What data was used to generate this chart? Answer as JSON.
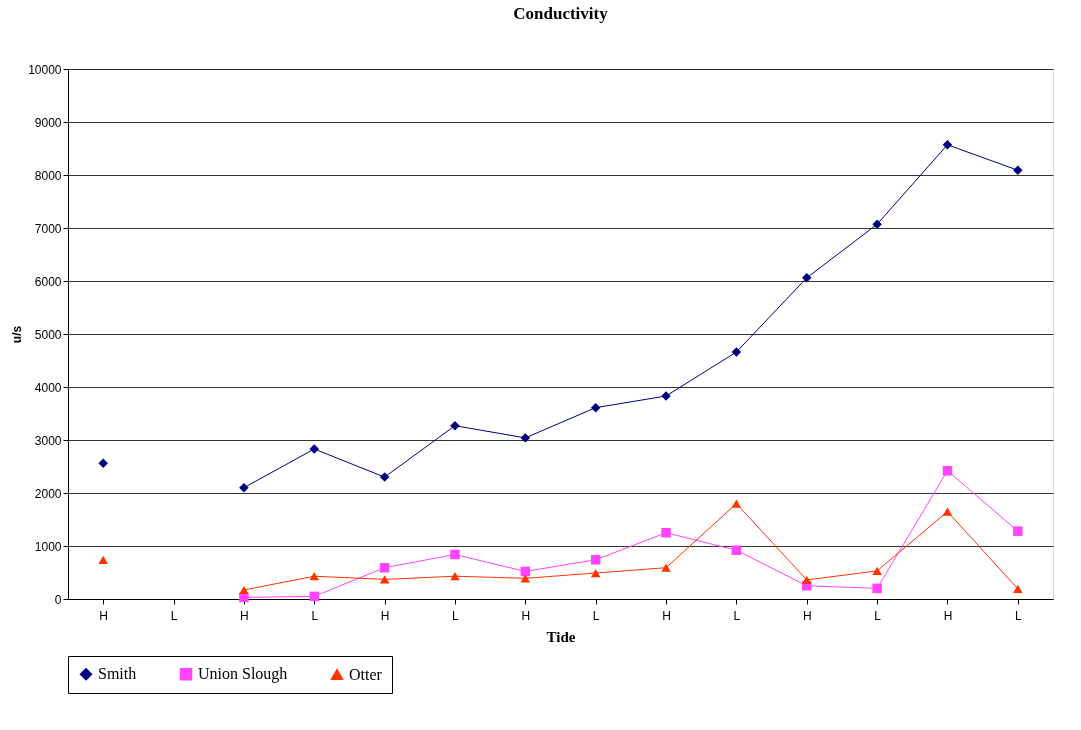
{
  "chart_data": {
    "type": "line",
    "title": "Conductivity",
    "xlabel": "Tide",
    "ylabel": "u/s",
    "categories": [
      "H",
      "L",
      "H",
      "L",
      "H",
      "L",
      "H",
      "L",
      "H",
      "L",
      "H",
      "L",
      "H",
      "L"
    ],
    "series": [
      {
        "name": "Smith",
        "color": "#000080",
        "marker": "diamond",
        "values": [
          2560,
          null,
          2100,
          2830,
          2300,
          3270,
          3040,
          3610,
          3830,
          4660,
          6060,
          7070,
          8570,
          8090
        ]
      },
      {
        "name": "Union Slough",
        "color": "#ff44ff",
        "marker": "square",
        "values": [
          null,
          null,
          30,
          50,
          590,
          840,
          520,
          740,
          1250,
          920,
          250,
          200,
          2420,
          1280
        ]
      },
      {
        "name": "Otter",
        "color": "#ff3300",
        "marker": "triangle",
        "values": [
          740,
          null,
          170,
          430,
          370,
          430,
          390,
          490,
          590,
          1800,
          360,
          530,
          1650,
          190
        ]
      }
    ],
    "ylim": [
      0,
      10000
    ],
    "yticks": [
      0,
      1000,
      2000,
      3000,
      4000,
      5000,
      6000,
      7000,
      8000,
      9000,
      10000
    ],
    "grid": "y",
    "legend": "bottom",
    "line_style": "solid"
  }
}
